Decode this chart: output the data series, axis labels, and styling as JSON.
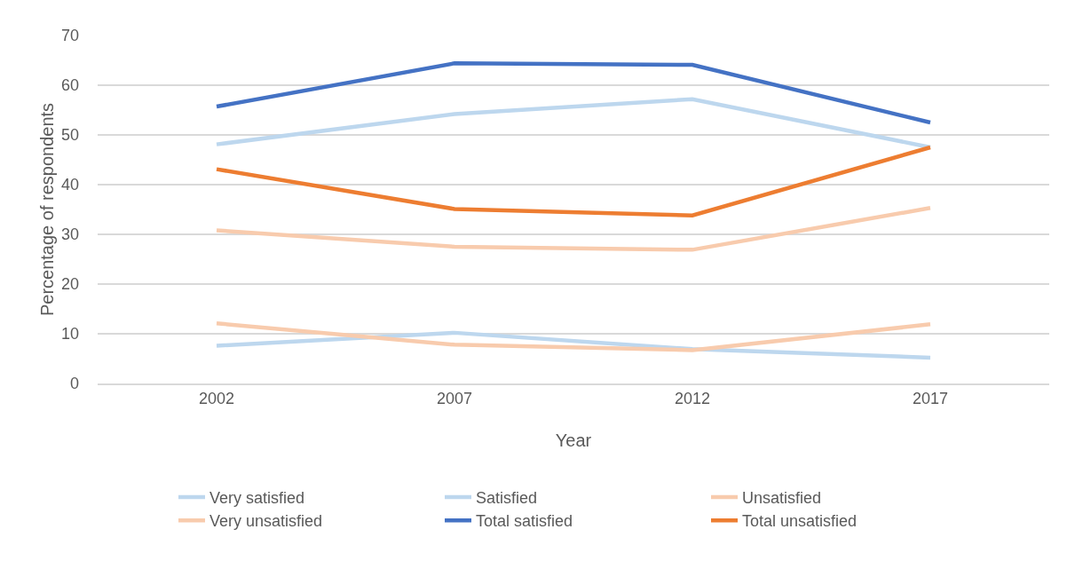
{
  "chart_data": {
    "type": "line",
    "xlabel": "Year",
    "ylabel": "Percentage of respondents",
    "categories": [
      "2002",
      "2007",
      "2012",
      "2017"
    ],
    "series": [
      {
        "name": "Very satisfied",
        "color": "#bdd7ee",
        "values": [
          7.6,
          10.2,
          6.9,
          5.2
        ]
      },
      {
        "name": "Satisfied",
        "color": "#bdd7ee",
        "values": [
          48.1,
          54.2,
          57.2,
          47.5
        ]
      },
      {
        "name": "Unsatisfied",
        "color": "#f8cbad",
        "values": [
          30.8,
          27.5,
          26.9,
          35.3
        ]
      },
      {
        "name": "Very unsatisfied",
        "color": "#f8cbad",
        "values": [
          12.1,
          7.8,
          6.7,
          11.9
        ]
      },
      {
        "name": "Total satisfied",
        "color": "#4472c4",
        "values": [
          55.7,
          64.4,
          64.1,
          52.5
        ]
      },
      {
        "name": "Total unsatisfied",
        "color": "#ed7d31",
        "values": [
          43.1,
          35.1,
          33.8,
          47.5
        ]
      }
    ],
    "ylim": [
      0,
      70
    ],
    "yticks": [
      0,
      10,
      20,
      30,
      40,
      50,
      60,
      70
    ],
    "grid": "y",
    "legend": "bottom",
    "marker": "none",
    "line_style": "solid"
  }
}
